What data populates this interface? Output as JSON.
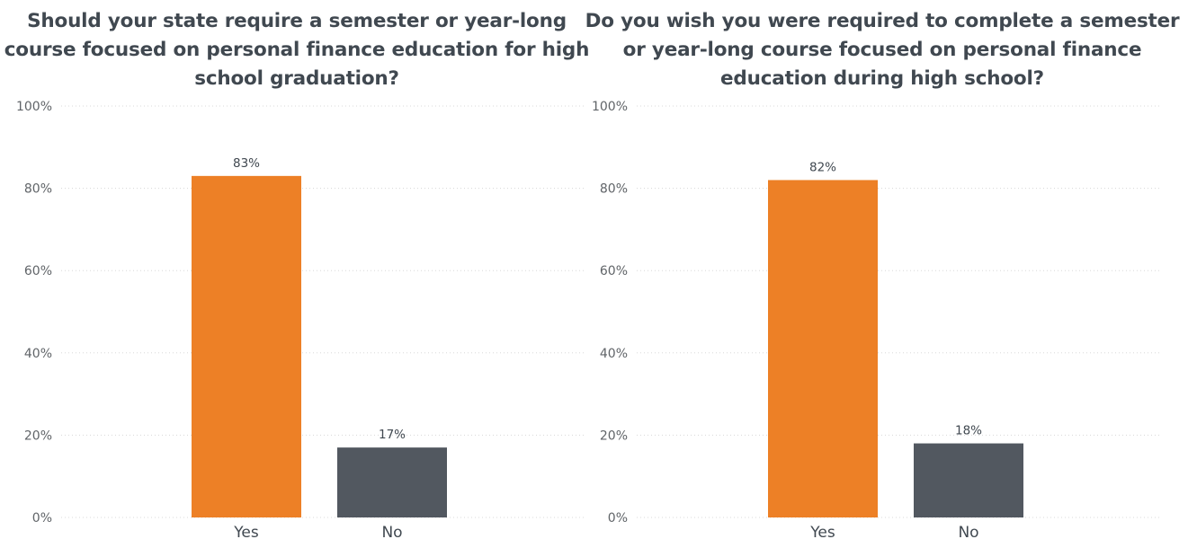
{
  "chart_data": [
    {
      "type": "bar",
      "title": "Should your state require a semester or year-long course focused on personal finance education for high school graduation?",
      "categories": [
        "Yes",
        "No"
      ],
      "values": [
        83,
        17
      ],
      "data_labels": [
        "83%",
        "17%"
      ],
      "ylim": [
        0,
        100
      ],
      "yticks": [
        0,
        20,
        40,
        60,
        80,
        100
      ],
      "ytick_labels": [
        "0%",
        "20%",
        "40%",
        "60%",
        "80%",
        "100%"
      ],
      "colors": [
        "#ED8026",
        "#525860"
      ],
      "grid": true,
      "legend": "none"
    },
    {
      "type": "bar",
      "title": "Do you wish you were required to complete a semester or year-long course focused on personal finance education during high school?",
      "categories": [
        "Yes",
        "No"
      ],
      "values": [
        82,
        18
      ],
      "data_labels": [
        "82%",
        "18%"
      ],
      "ylim": [
        0,
        100
      ],
      "yticks": [
        0,
        20,
        40,
        60,
        80,
        100
      ],
      "ytick_labels": [
        "0%",
        "20%",
        "40%",
        "60%",
        "80%",
        "100%"
      ],
      "colors": [
        "#ED8026",
        "#525860"
      ],
      "grid": true,
      "legend": "none"
    }
  ]
}
